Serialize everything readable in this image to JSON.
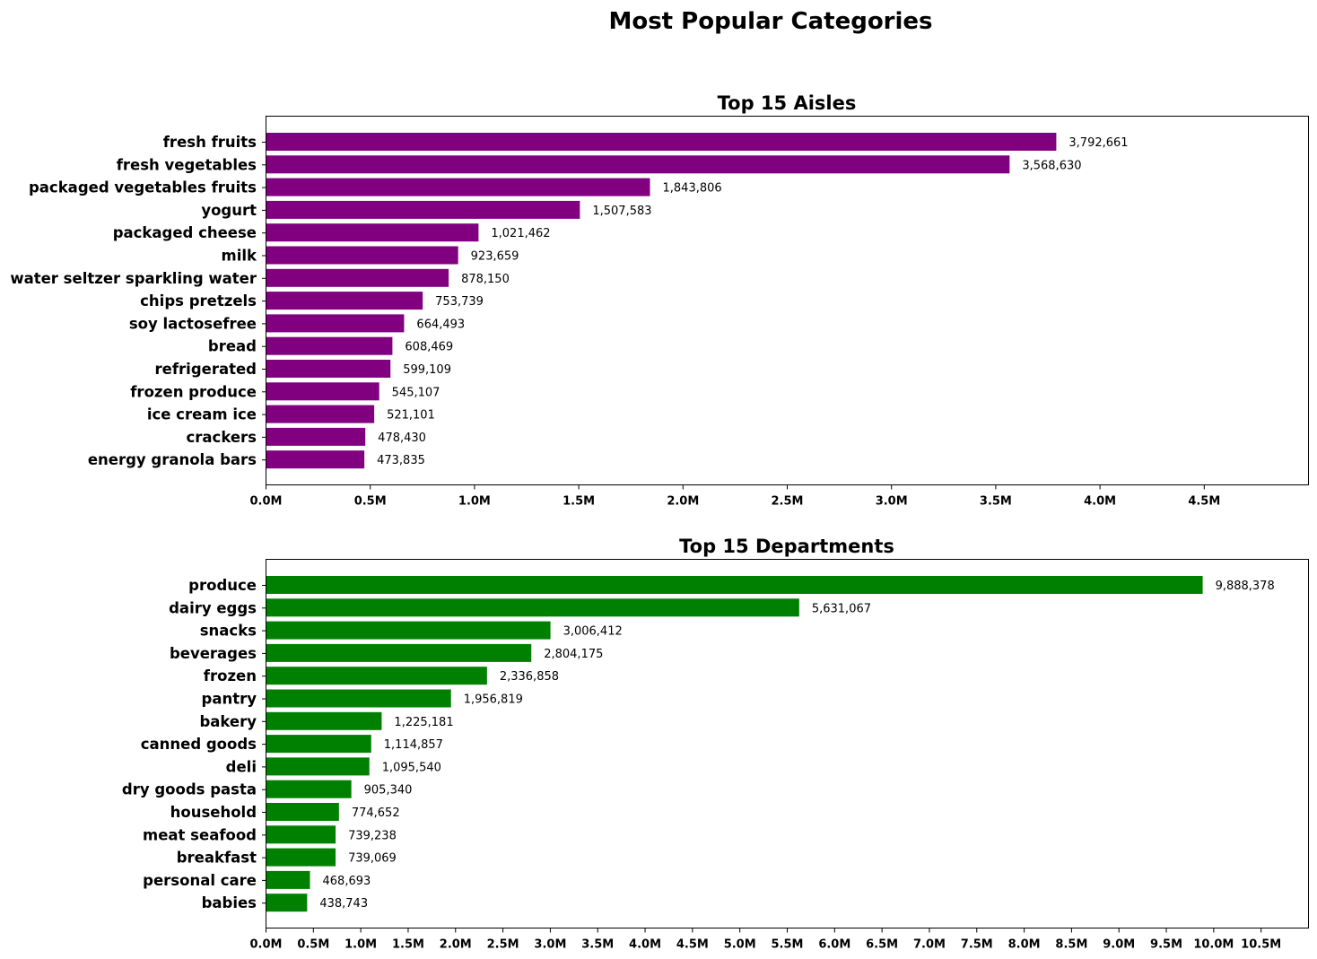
{
  "figure": {
    "title": "Most Popular Categories"
  },
  "chart_data": [
    {
      "type": "bar",
      "orientation": "horizontal",
      "title": "Top 15 Aisles",
      "xlabel": "",
      "ylabel": "",
      "color": "#800080",
      "xlim": [
        0,
        5000000
      ],
      "xticks": [
        0,
        500000,
        1000000,
        1500000,
        2000000,
        2500000,
        3000000,
        3500000,
        4000000,
        4500000
      ],
      "xtick_labels": [
        "0.0M",
        "0.5M",
        "1.0M",
        "1.5M",
        "2.0M",
        "2.5M",
        "3.0M",
        "3.5M",
        "4.0M",
        "4.5M"
      ],
      "grid": false,
      "categories": [
        "fresh fruits",
        "fresh vegetables",
        "packaged vegetables fruits",
        "yogurt",
        "packaged cheese",
        "milk",
        "water seltzer sparkling water",
        "chips pretzels",
        "soy lactosefree",
        "bread",
        "refrigerated",
        "frozen produce",
        "ice cream ice",
        "crackers",
        "energy granola bars"
      ],
      "values": [
        3792661,
        3568630,
        1843806,
        1507583,
        1021462,
        923659,
        878150,
        753739,
        664493,
        608469,
        599109,
        545107,
        521101,
        478430,
        473835
      ],
      "value_labels": [
        "3,792,661",
        "3,568,630",
        "1,843,806",
        "1,507,583",
        "1,021,462",
        "923,659",
        "878,150",
        "753,739",
        "664,493",
        "608,469",
        "599,109",
        "545,107",
        "521,101",
        "478,430",
        "473,835"
      ]
    },
    {
      "type": "bar",
      "orientation": "horizontal",
      "title": "Top 15 Departments",
      "xlabel": "",
      "ylabel": "",
      "color": "#008000",
      "xlim": [
        0,
        11000000
      ],
      "xticks": [
        0,
        500000,
        1000000,
        1500000,
        2000000,
        2500000,
        3000000,
        3500000,
        4000000,
        4500000,
        5000000,
        5500000,
        6000000,
        6500000,
        7000000,
        7500000,
        8000000,
        8500000,
        9000000,
        9500000,
        10000000,
        10500000
      ],
      "xtick_labels": [
        "0.0M",
        "0.5M",
        "1.0M",
        "1.5M",
        "2.0M",
        "2.5M",
        "3.0M",
        "3.5M",
        "4.0M",
        "4.5M",
        "5.0M",
        "5.5M",
        "6.0M",
        "6.5M",
        "7.0M",
        "7.5M",
        "8.0M",
        "8.5M",
        "9.0M",
        "9.5M",
        "10.0M",
        "10.5M"
      ],
      "grid": false,
      "categories": [
        "produce",
        "dairy eggs",
        "snacks",
        "beverages",
        "frozen",
        "pantry",
        "bakery",
        "canned goods",
        "deli",
        "dry goods pasta",
        "household",
        "meat seafood",
        "breakfast",
        "personal care",
        "babies"
      ],
      "values": [
        9888378,
        5631067,
        3006412,
        2804175,
        2336858,
        1956819,
        1225181,
        1114857,
        1095540,
        905340,
        774652,
        739238,
        739069,
        468693,
        438743
      ],
      "value_labels": [
        "9,888,378",
        "5,631,067",
        "3,006,412",
        "2,804,175",
        "2,336,858",
        "1,956,819",
        "1,225,181",
        "1,114,857",
        "1,095,540",
        "905,340",
        "774,652",
        "739,238",
        "739,069",
        "468,693",
        "438,743"
      ]
    }
  ]
}
